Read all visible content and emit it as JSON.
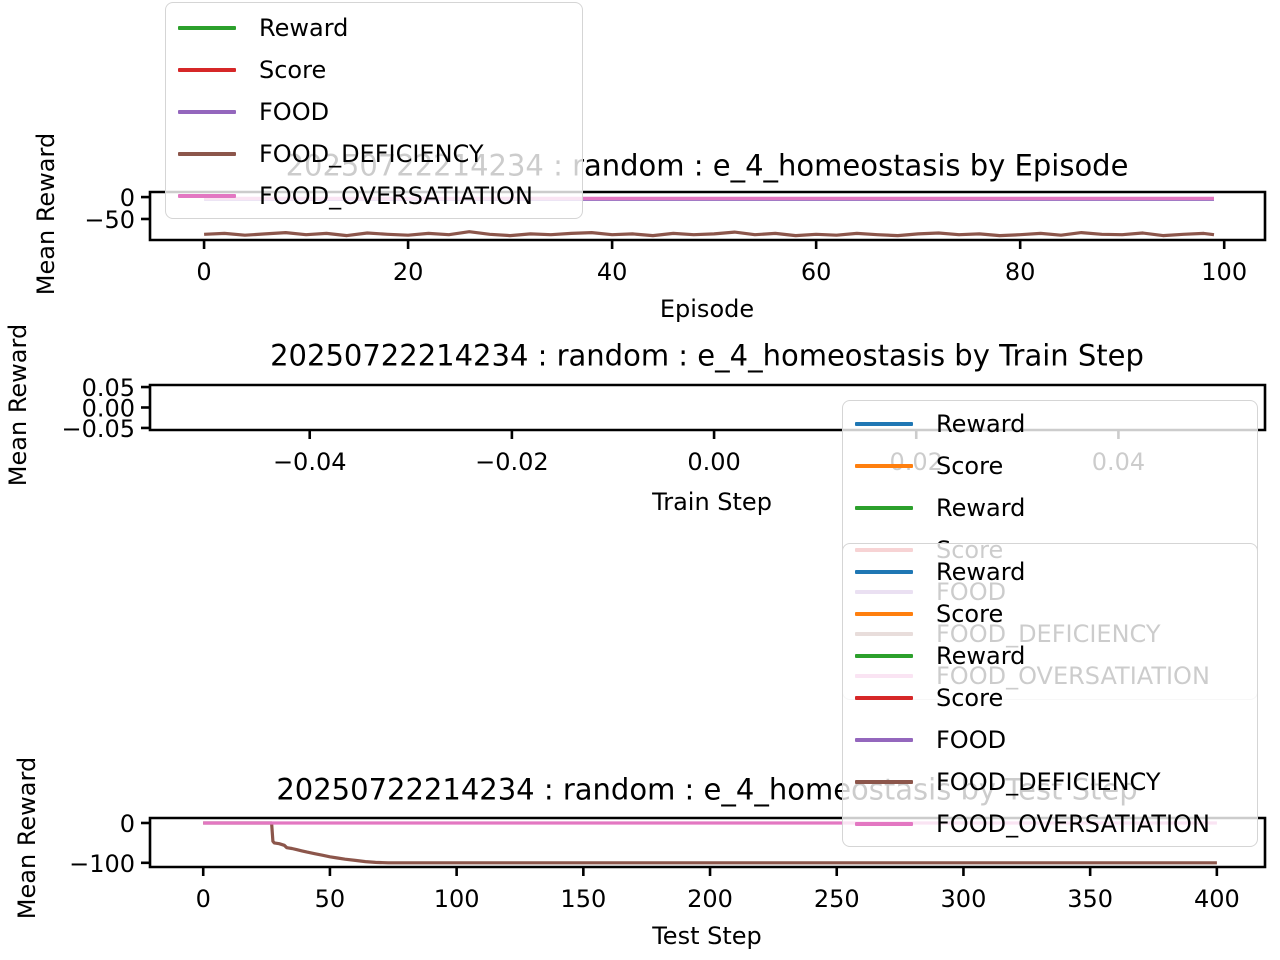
{
  "figure": {
    "background": "#ffffff"
  },
  "palette": {
    "blue": "#1f77b4",
    "orange": "#ff7f0e",
    "green": "#2ca02c",
    "red": "#d62728",
    "purple": "#9467bd",
    "brown": "#8c564b",
    "pink": "#e377c2",
    "axis": "#000000",
    "legend_border": "#d5d5d5",
    "faded_text_effect": "#c9c9c9"
  },
  "chart_data": [
    {
      "type": "line",
      "title": "20250722214234 : random : e_4_homeostasis by Episode",
      "xlabel": "Episode",
      "ylabel": "Mean Reward",
      "xlim": [
        -5.3,
        104
      ],
      "ylim": [
        -98,
        11.6
      ],
      "grid": false,
      "xticks": [
        {
          "v": 0,
          "label": "0"
        },
        {
          "v": 20,
          "label": "20"
        },
        {
          "v": 40,
          "label": "40"
        },
        {
          "v": 60,
          "label": "60"
        },
        {
          "v": 80,
          "label": "80"
        },
        {
          "v": 100,
          "label": "100"
        }
      ],
      "yticks": [
        {
          "v": 0,
          "label": "0"
        },
        {
          "v": -50,
          "label": "−50"
        }
      ],
      "series": [
        {
          "name": "Reward",
          "color": "#2ca02c",
          "visible": false,
          "points": []
        },
        {
          "name": "Score",
          "color": "#d62728",
          "visible": false,
          "points": []
        },
        {
          "name": "FOOD",
          "color": "#9467bd",
          "visible": true,
          "points": [
            [
              0,
              -5
            ],
            [
              99,
              -5
            ]
          ]
        },
        {
          "name": "FOOD_DEFICIENCY",
          "color": "#8c564b",
          "visible": true,
          "points": [
            [
              0,
              -85
            ],
            [
              2,
              -83
            ],
            [
              4,
              -87
            ],
            [
              6,
              -84
            ],
            [
              8,
              -81
            ],
            [
              10,
              -86
            ],
            [
              12,
              -83
            ],
            [
              14,
              -88
            ],
            [
              16,
              -82
            ],
            [
              18,
              -85
            ],
            [
              20,
              -87
            ],
            [
              22,
              -83
            ],
            [
              24,
              -86
            ],
            [
              26,
              -79
            ],
            [
              28,
              -85
            ],
            [
              30,
              -88
            ],
            [
              32,
              -84
            ],
            [
              34,
              -86
            ],
            [
              36,
              -83
            ],
            [
              38,
              -81
            ],
            [
              40,
              -86
            ],
            [
              42,
              -84
            ],
            [
              44,
              -88
            ],
            [
              46,
              -83
            ],
            [
              48,
              -86
            ],
            [
              50,
              -84
            ],
            [
              52,
              -80
            ],
            [
              54,
              -86
            ],
            [
              56,
              -83
            ],
            [
              58,
              -88
            ],
            [
              60,
              -85
            ],
            [
              62,
              -87
            ],
            [
              64,
              -83
            ],
            [
              66,
              -86
            ],
            [
              68,
              -88
            ],
            [
              70,
              -84
            ],
            [
              72,
              -82
            ],
            [
              74,
              -86
            ],
            [
              76,
              -84
            ],
            [
              78,
              -88
            ],
            [
              80,
              -86
            ],
            [
              82,
              -83
            ],
            [
              84,
              -87
            ],
            [
              86,
              -81
            ],
            [
              88,
              -85
            ],
            [
              90,
              -86
            ],
            [
              92,
              -82
            ],
            [
              94,
              -88
            ],
            [
              96,
              -85
            ],
            [
              98,
              -83
            ],
            [
              99,
              -86
            ]
          ]
        },
        {
          "name": "FOOD_OVERSATIATION",
          "color": "#e377c2",
          "visible": true,
          "points": [
            [
              0,
              -3
            ],
            [
              99,
              -3
            ]
          ]
        }
      ],
      "legend": {
        "entries": [
          {
            "label": "Reward",
            "color": "#2ca02c"
          },
          {
            "label": "Score",
            "color": "#d62728"
          },
          {
            "label": "FOOD",
            "color": "#9467bd"
          },
          {
            "label": "FOOD_DEFICIENCY",
            "color": "#8c564b"
          },
          {
            "label": "FOOD_OVERSATIATION",
            "color": "#e377c2"
          }
        ]
      }
    },
    {
      "type": "line",
      "title": "20250722214234 : random : e_4_homeostasis by Train Step",
      "xlabel": "Train Step",
      "ylabel": "Mean Reward",
      "xlim": [
        -0.0558,
        0.0545
      ],
      "ylim": [
        -0.055,
        0.055
      ],
      "grid": false,
      "xticks": [
        {
          "v": -0.04,
          "label": "−0.04"
        },
        {
          "v": -0.02,
          "label": "−0.02"
        },
        {
          "v": 0.0,
          "label": "0.00"
        },
        {
          "v": 0.02,
          "label": "0.02"
        },
        {
          "v": 0.04,
          "label": "0.04"
        }
      ],
      "yticks": [
        {
          "v": 0.05,
          "label": "0.05"
        },
        {
          "v": 0.0,
          "label": "0.00"
        },
        {
          "v": -0.05,
          "label": "−0.05"
        }
      ],
      "series": [
        {
          "name": "Reward",
          "color": "#1f77b4",
          "visible": false,
          "points": []
        },
        {
          "name": "Score",
          "color": "#ff7f0e",
          "visible": false,
          "points": []
        },
        {
          "name": "Reward",
          "color": "#2ca02c",
          "visible": false,
          "points": []
        },
        {
          "name": "Score",
          "color": "#d62728",
          "visible": false,
          "points": []
        },
        {
          "name": "FOOD",
          "color": "#9467bd",
          "visible": false,
          "points": []
        },
        {
          "name": "FOOD_DEFICIENCY",
          "color": "#8c564b",
          "visible": false,
          "points": []
        },
        {
          "name": "FOOD_OVERSATIATION",
          "color": "#e377c2",
          "visible": false,
          "points": []
        }
      ],
      "legend": {
        "entries": [
          {
            "label": "Reward",
            "color": "#1f77b4"
          },
          {
            "label": "Score",
            "color": "#ff7f0e"
          },
          {
            "label": "Reward",
            "color": "#2ca02c"
          },
          {
            "label": "Score",
            "color": "#d62728"
          },
          {
            "label": "FOOD",
            "color": "#9467bd"
          },
          {
            "label": "FOOD_DEFICIENCY",
            "color": "#8c564b"
          },
          {
            "label": "FOOD_OVERSATIATION",
            "color": "#e377c2"
          }
        ]
      }
    },
    {
      "type": "line",
      "title": "20250722214234 : random : e_4_homeostasis by Test Step",
      "xlabel": "Test Step",
      "ylabel": "Mean Reward",
      "xlim": [
        -21,
        419
      ],
      "ylim": [
        -110.5,
        12.5
      ],
      "grid": false,
      "xticks": [
        {
          "v": 0,
          "label": "0"
        },
        {
          "v": 50,
          "label": "50"
        },
        {
          "v": 100,
          "label": "100"
        },
        {
          "v": 150,
          "label": "150"
        },
        {
          "v": 200,
          "label": "200"
        },
        {
          "v": 250,
          "label": "250"
        },
        {
          "v": 300,
          "label": "300"
        },
        {
          "v": 350,
          "label": "350"
        },
        {
          "v": 400,
          "label": "400"
        }
      ],
      "yticks": [
        {
          "v": 0,
          "label": "0"
        },
        {
          "v": -100,
          "label": "−100"
        }
      ],
      "series": [
        {
          "name": "Reward",
          "color": "#1f77b4",
          "visible": false,
          "points": []
        },
        {
          "name": "Score",
          "color": "#ff7f0e",
          "visible": false,
          "points": []
        },
        {
          "name": "Reward",
          "color": "#2ca02c",
          "visible": false,
          "points": []
        },
        {
          "name": "Score",
          "color": "#d62728",
          "visible": false,
          "points": []
        },
        {
          "name": "FOOD",
          "color": "#9467bd",
          "visible": false,
          "points": []
        },
        {
          "name": "FOOD_DEFICIENCY",
          "color": "#8c564b",
          "visible": true,
          "points": [
            [
              0,
              0
            ],
            [
              27,
              0
            ],
            [
              27.5,
              -46
            ],
            [
              28,
              -50
            ],
            [
              30,
              -52
            ],
            [
              32,
              -56
            ],
            [
              33,
              -62
            ],
            [
              35,
              -64
            ],
            [
              37,
              -67
            ],
            [
              39,
              -70
            ],
            [
              41,
              -73
            ],
            [
              44,
              -77
            ],
            [
              47,
              -81
            ],
            [
              50,
              -85
            ],
            [
              53,
              -88
            ],
            [
              56,
              -91
            ],
            [
              60,
              -94
            ],
            [
              64,
              -97
            ],
            [
              68,
              -99
            ],
            [
              73,
              -100
            ],
            [
              80,
              -100
            ],
            [
              400,
              -100
            ]
          ]
        },
        {
          "name": "FOOD_OVERSATIATION",
          "color": "#e377c2",
          "visible": true,
          "points": [
            [
              0,
              0
            ],
            [
              400,
              0
            ]
          ]
        }
      ],
      "legend": {
        "entries": [
          {
            "label": "Reward",
            "color": "#1f77b4"
          },
          {
            "label": "Score",
            "color": "#ff7f0e"
          },
          {
            "label": "Reward",
            "color": "#2ca02c"
          },
          {
            "label": "Score",
            "color": "#d62728"
          },
          {
            "label": "FOOD",
            "color": "#9467bd"
          },
          {
            "label": "FOOD_DEFICIENCY",
            "color": "#8c564b"
          },
          {
            "label": "FOOD_OVERSATIATION",
            "color": "#e377c2"
          }
        ]
      }
    }
  ]
}
